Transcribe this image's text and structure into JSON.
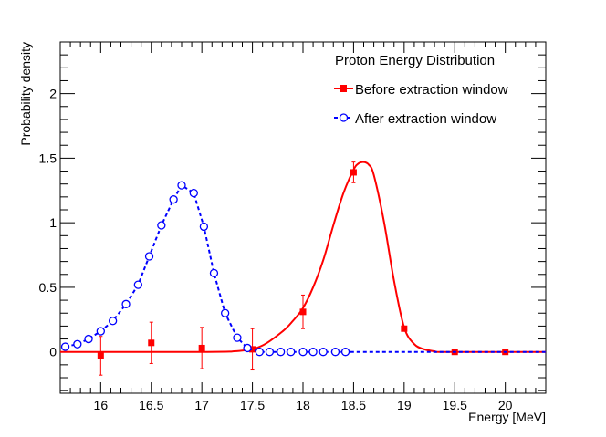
{
  "chart_data": {
    "type": "line",
    "title": "Proton Energy Distribution",
    "xlabel": "Energy [MeV]",
    "ylabel": "Probability density",
    "xlim": [
      15.6,
      20.4
    ],
    "ylim": [
      -0.32,
      2.4
    ],
    "x_ticks": [
      16,
      16.5,
      17,
      17.5,
      18,
      18.5,
      19,
      19.5,
      20
    ],
    "x_tick_labels": [
      "16",
      "16.5",
      "17",
      "17.5",
      "18",
      "18.5",
      "19",
      "19.5",
      "20"
    ],
    "y_ticks": [
      0,
      0.5,
      1,
      1.5,
      2
    ],
    "y_tick_labels": [
      "0",
      "0.5",
      "1",
      "1.5",
      "2"
    ],
    "grid": false,
    "legend_position": "top-right",
    "series": [
      {
        "name": "Before extraction window",
        "color": "#ff0000",
        "marker": "filled-square",
        "line_style": "solid",
        "points": [
          {
            "x": 16.0,
            "y": -0.03,
            "err": 0.15
          },
          {
            "x": 16.5,
            "y": 0.07,
            "err": 0.16
          },
          {
            "x": 17.0,
            "y": 0.03,
            "err": 0.16
          },
          {
            "x": 17.5,
            "y": 0.02,
            "err": 0.16
          },
          {
            "x": 18.0,
            "y": 0.31,
            "err": 0.13
          },
          {
            "x": 18.5,
            "y": 1.39,
            "err": 0.08
          },
          {
            "x": 19.0,
            "y": 0.18,
            "err": 0.0
          },
          {
            "x": 19.5,
            "y": 0.0,
            "err": 0.0
          },
          {
            "x": 20.0,
            "y": 0.0,
            "err": 0.0
          }
        ],
        "curve": {
          "x": [
            15.6,
            17.0,
            17.4,
            17.6,
            17.8,
            17.9,
            18.0,
            18.1,
            18.2,
            18.3,
            18.4,
            18.5,
            18.55,
            18.6,
            18.65,
            18.7,
            18.8,
            18.9,
            19.0,
            19.1,
            19.2,
            19.3,
            19.4,
            20.4
          ],
          "y": [
            0.0,
            0.0,
            0.01,
            0.05,
            0.16,
            0.24,
            0.34,
            0.5,
            0.71,
            0.98,
            1.23,
            1.41,
            1.46,
            1.47,
            1.45,
            1.37,
            1.01,
            0.55,
            0.19,
            0.06,
            0.02,
            0.005,
            0.0,
            0.0
          ]
        }
      },
      {
        "name": "After extraction window",
        "color": "#0000ff",
        "marker": "open-circle",
        "line_style": "dashed",
        "points": [
          {
            "x": 15.65,
            "y": 0.04
          },
          {
            "x": 15.77,
            "y": 0.06
          },
          {
            "x": 15.88,
            "y": 0.1
          },
          {
            "x": 16.0,
            "y": 0.16
          },
          {
            "x": 16.12,
            "y": 0.24
          },
          {
            "x": 16.25,
            "y": 0.37
          },
          {
            "x": 16.37,
            "y": 0.52
          },
          {
            "x": 16.48,
            "y": 0.74
          },
          {
            "x": 16.6,
            "y": 0.98
          },
          {
            "x": 16.72,
            "y": 1.18
          },
          {
            "x": 16.8,
            "y": 1.29
          },
          {
            "x": 16.92,
            "y": 1.23
          },
          {
            "x": 17.02,
            "y": 0.97
          },
          {
            "x": 17.12,
            "y": 0.61
          },
          {
            "x": 17.23,
            "y": 0.3
          },
          {
            "x": 17.35,
            "y": 0.11
          },
          {
            "x": 17.45,
            "y": 0.03
          },
          {
            "x": 17.57,
            "y": 0.0
          },
          {
            "x": 17.67,
            "y": 0.0
          },
          {
            "x": 17.78,
            "y": 0.0
          },
          {
            "x": 17.88,
            "y": 0.0
          },
          {
            "x": 18.0,
            "y": 0.0
          },
          {
            "x": 18.1,
            "y": 0.0
          },
          {
            "x": 18.2,
            "y": 0.0
          },
          {
            "x": 18.32,
            "y": 0.0
          },
          {
            "x": 18.42,
            "y": 0.0
          }
        ],
        "curve_extent_x": [
          18.42,
          20.4
        ]
      }
    ]
  }
}
